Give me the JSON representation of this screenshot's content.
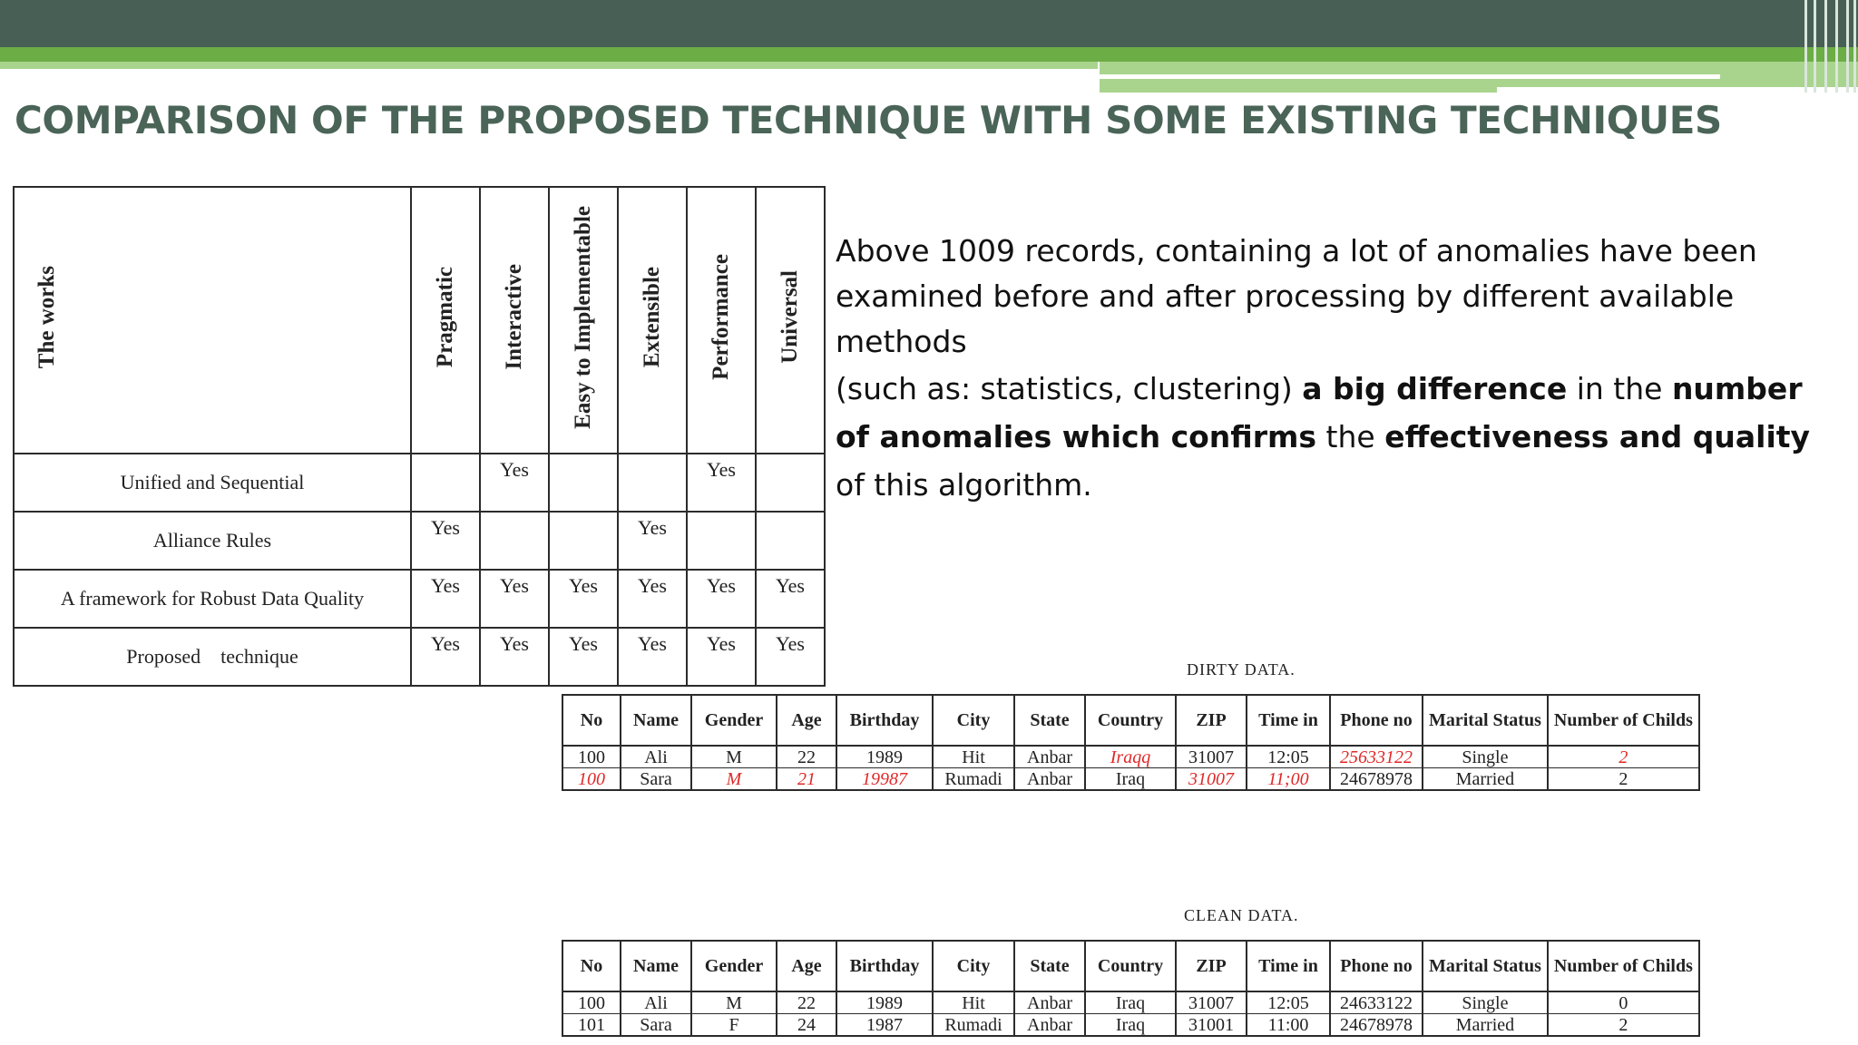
{
  "slide_title": "COMPARISON OF THE PROPOSED TECHNIQUE WITH SOME EXISTING TECHNIQUES",
  "comparison_table": {
    "headers": [
      "The works",
      "Pragmatic",
      "Interactive",
      "Easy to Implementable",
      "Extensible",
      "Performance",
      "Universal"
    ],
    "rows": [
      {
        "work": "Unified and Sequential",
        "cells": [
          "",
          "Yes",
          "",
          "",
          "Yes",
          ""
        ]
      },
      {
        "work": "Alliance Rules",
        "cells": [
          "Yes",
          "",
          "",
          "Yes",
          "",
          ""
        ]
      },
      {
        "work": "A framework for Robust Data Quality",
        "cells": [
          "Yes",
          "Yes",
          "Yes",
          "Yes",
          "Yes",
          "Yes"
        ]
      },
      {
        "work": "Proposed    technique",
        "cells": [
          "Yes",
          "Yes",
          "Yes",
          "Yes",
          "Yes",
          "Yes"
        ]
      }
    ]
  },
  "paragraph": {
    "line1": "Above 1009 records, containing a lot of anomalies have been examined before and after processing by different available methods",
    "l2_a": "(such as: statistics, clustering) ",
    "l2_b": "a big difference",
    "l2_c": " in the ",
    "l2_d": "number of anomalies which confirms",
    "l2_e": " the ",
    "l2_f": "effectiveness and quality",
    "l2_g": " of this algorithm."
  },
  "dirty_table": {
    "caption": "DIRTY DATA.",
    "headers": [
      "No",
      "Name",
      "Gender",
      "Age",
      "Birthday",
      "City",
      "State",
      "Country",
      "ZIP",
      "Time in",
      "Phone no",
      "Marital Status",
      "Number of Childs"
    ],
    "rows": [
      [
        "100",
        "Ali",
        "M",
        "22",
        "1989",
        "Hit",
        "Anbar",
        "Iraqq",
        "31007",
        "12:05",
        "25633122",
        "Single",
        "2"
      ],
      [
        "100",
        "Sara",
        "M",
        "21",
        "19987",
        "Rumadi",
        "Anbar",
        "Iraq",
        "31007",
        "11;00",
        "24678978",
        "Married",
        "2"
      ]
    ],
    "highlight_color": "#e02828"
  },
  "clean_table": {
    "caption": "CLEAN DATA.",
    "headers": [
      "No",
      "Name",
      "Gender",
      "Age",
      "Birthday",
      "City",
      "State",
      "Country",
      "ZIP",
      "Time in",
      "Phone no",
      "Marital Status",
      "Number of Childs"
    ],
    "rows": [
      [
        "100",
        "Ali",
        "M",
        "22",
        "1989",
        "Hit",
        "Anbar",
        "Iraq",
        "31007",
        "12:05",
        "24633122",
        "Single",
        "0"
      ],
      [
        "101",
        "Sara",
        "F",
        "24",
        "1987",
        "Rumadi",
        "Anbar",
        "Iraq",
        "31001",
        "11:00",
        "24678978",
        "Married",
        "2"
      ]
    ]
  }
}
